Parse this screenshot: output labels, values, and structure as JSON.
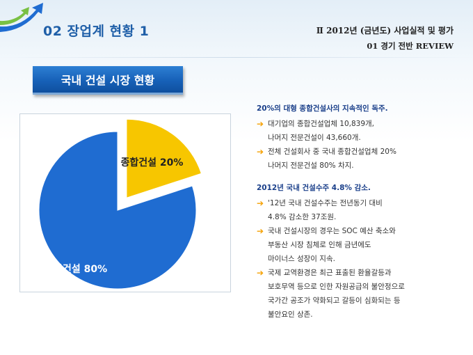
{
  "header": {
    "section_title": "02  장업계 현황 1",
    "right_line1": "Ⅱ  2012년 (금년도) 사업실적 및 평가",
    "right_line2": "01  경기 전반 REVIEW"
  },
  "banner": {
    "title": "국내 건설 시장 현황"
  },
  "chart_data": {
    "type": "pie",
    "slices": [
      {
        "name": "종합건설",
        "value": 20,
        "label": "20%",
        "color": "#f7c600",
        "exploded": true
      },
      {
        "name": "전문건설",
        "value": 80,
        "label": "80%",
        "color": "#1f6cd1",
        "exploded": false
      }
    ]
  },
  "content": {
    "block1": {
      "heading": "20%의 대형 종합건설사의 지속적인 독주.",
      "bullets": [
        [
          "대기업의 종합건설업체 10,839개,",
          "나머지 전문건설이 43,660개."
        ],
        [
          "전체 건설회사 중 국내 종합건설업체 20%",
          "나머지 전문건설 80% 차지."
        ]
      ]
    },
    "block2": {
      "heading": "2012년 국내 건설수주 4.8% 감소.",
      "bullets": [
        [
          "'12년 국내 건설수주는 전년동기 대비",
          "4.8% 감소한 37조원."
        ],
        [
          "국내 건설시장의 경우는 SOC 예산 축소와",
          "부동산 시장 침체로 인해 금년에도",
          "마이너스 성장이 지속."
        ],
        [
          "국제 교역환경은 최근 표출된 환율갈등과",
          "보호무역 등으로 인한 자원공급의 불안정으로",
          "국가간 공조가 약화되고 갈등이 심화되는 등",
          "불안요인 상존."
        ]
      ]
    }
  }
}
